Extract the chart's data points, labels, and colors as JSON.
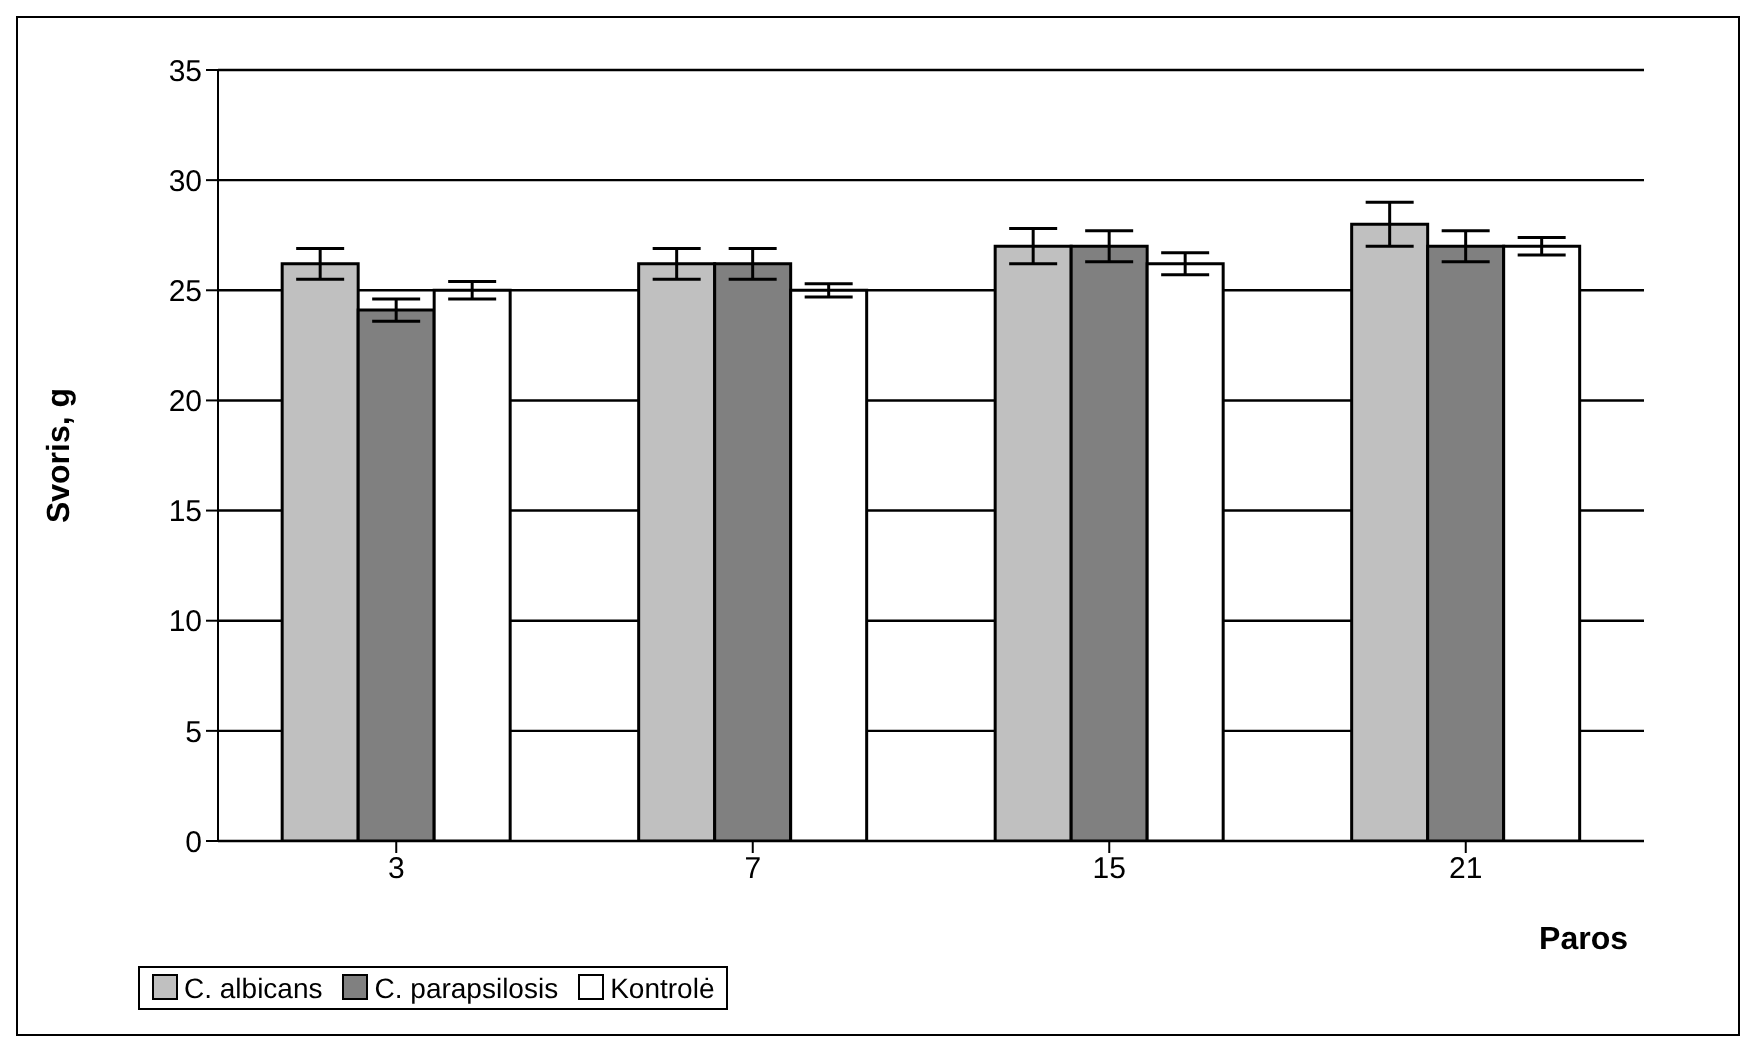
{
  "chart_data": {
    "type": "bar",
    "xlabel": "Paros",
    "ylabel": "Svoris, g",
    "categories": [
      "3",
      "7",
      "15",
      "21"
    ],
    "series": [
      {
        "name": "C. albicans",
        "color": "#c0c0c0",
        "values": [
          26.2,
          26.2,
          27.0,
          28.0
        ],
        "errors": [
          0.7,
          0.7,
          0.8,
          1.0
        ]
      },
      {
        "name": "C. parapsilosis",
        "color": "#808080",
        "values": [
          24.1,
          26.2,
          27.0,
          27.0
        ],
        "errors": [
          0.5,
          0.7,
          0.7,
          0.7
        ]
      },
      {
        "name": "Kontrolė",
        "color": "#ffffff",
        "values": [
          25.0,
          25.0,
          26.2,
          27.0
        ],
        "errors": [
          0.4,
          0.3,
          0.5,
          0.4
        ]
      }
    ],
    "ylim": [
      0,
      35
    ],
    "yticks": [
      0,
      5,
      10,
      15,
      20,
      25,
      30,
      35
    ],
    "grid": "y",
    "legend": "bottom"
  }
}
